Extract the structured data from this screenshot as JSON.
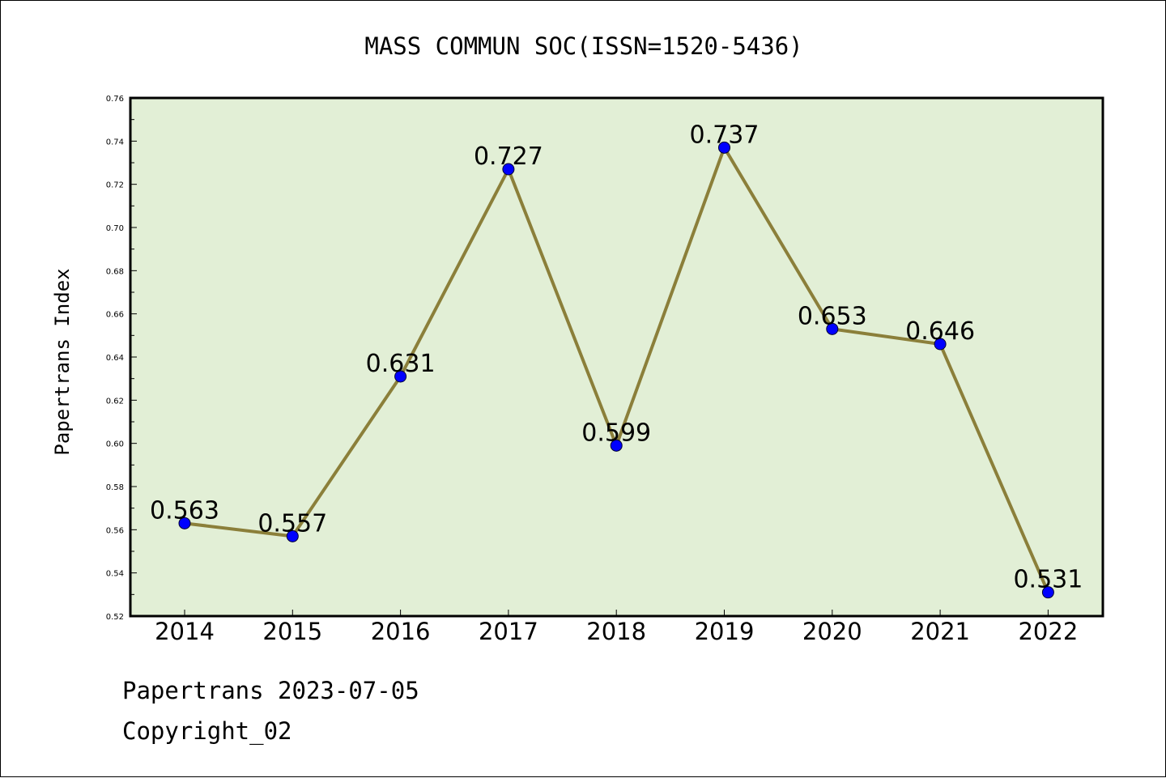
{
  "footer": {
    "line1": "Papertrans 2023-07-05",
    "line2": "Copyright_02"
  },
  "chart_data": {
    "type": "line",
    "title": "MASS COMMUN SOC(ISSN=1520-5436)",
    "xlabel": "",
    "ylabel": "Papertrans Index",
    "categories": [
      "2014",
      "2015",
      "2016",
      "2017",
      "2018",
      "2019",
      "2020",
      "2021",
      "2022"
    ],
    "series": [
      {
        "values": [
          0.563,
          0.557,
          0.631,
          0.727,
          0.599,
          0.737,
          0.653,
          0.646,
          0.531
        ],
        "labels": [
          "0.563",
          "0.557",
          "0.631",
          "0.727",
          "0.599",
          "0.737",
          "0.653",
          "0.646",
          "0.531"
        ]
      }
    ],
    "ylim": [
      0.52,
      0.76
    ],
    "yticks": [
      "0.52",
      "0.54",
      "0.56",
      "0.58",
      "0.60",
      "0.62",
      "0.64",
      "0.66",
      "0.68",
      "0.70",
      "0.72",
      "0.74",
      "0.76"
    ],
    "grid": false,
    "legend": "none",
    "colors": {
      "plot_background": "#e2efd6",
      "line": "#8b7f3a",
      "marker": "#0000ff"
    }
  }
}
